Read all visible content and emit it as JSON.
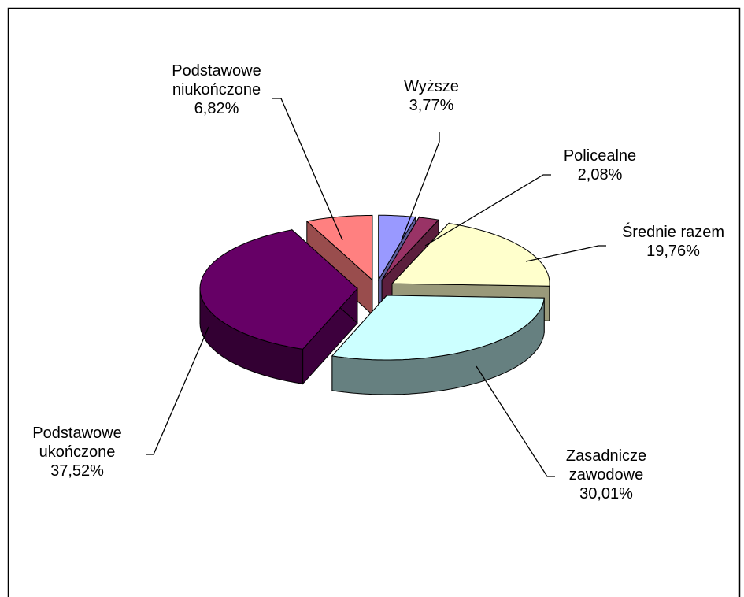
{
  "chart_data": {
    "type": "pie",
    "categories": [
      "Wyższe",
      "Policealne",
      "Średnie razem",
      "Zasadnicze zawodowe",
      "Podstawowe ukończone",
      "Podstawowe niukończone"
    ],
    "values": [
      3.77,
      2.08,
      19.76,
      30.01,
      37.52,
      6.82
    ],
    "value_labels": [
      "3,77%",
      "2,08%",
      "19,76%",
      "30,01%",
      "37,52%",
      "6,82%"
    ],
    "colors": [
      "#9999ff",
      "#993366",
      "#ffffcc",
      "#ccffff",
      "#660066",
      "#ff8080"
    ],
    "exploded": true
  }
}
